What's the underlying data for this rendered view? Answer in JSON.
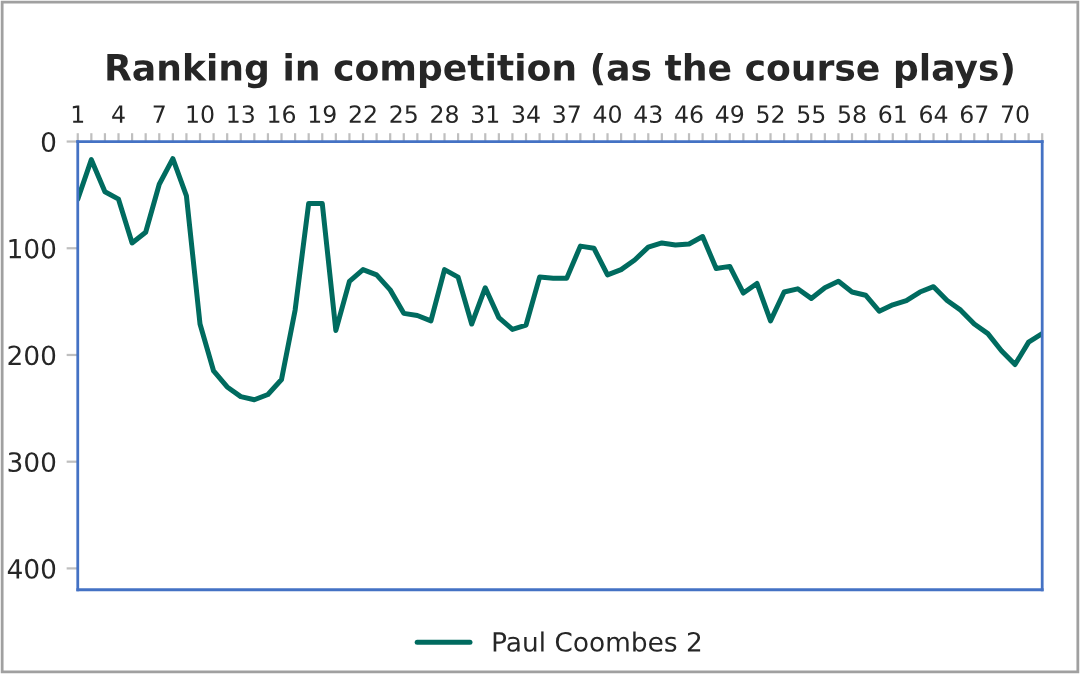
{
  "chart_data": {
    "type": "line",
    "title": "Ranking in competition (as the course plays)",
    "categories": [
      "1",
      null,
      null,
      "4",
      null,
      null,
      "7",
      null,
      null,
      "10",
      null,
      null,
      "13",
      null,
      null,
      "16",
      null,
      null,
      "19",
      null,
      null,
      "22",
      null,
      null,
      "25",
      null,
      null,
      "28",
      null,
      null,
      "31",
      null,
      null,
      "34",
      null,
      null,
      "37",
      null,
      null,
      "40",
      null,
      null,
      "43",
      null,
      null,
      "46",
      null,
      null,
      "49",
      null,
      null,
      "52",
      null,
      null,
      "55",
      null,
      null,
      "58",
      null,
      null,
      "61",
      null,
      null,
      "64",
      null,
      null,
      "67",
      null,
      null,
      "70",
      null,
      null
    ],
    "series": [
      {
        "name": "Paul Coombes 2",
        "color": "#006b5f",
        "values": [
          54,
          17,
          47,
          54,
          95,
          85,
          40,
          16,
          51,
          171,
          215,
          230,
          239,
          242,
          237,
          223,
          158,
          58,
          58,
          177,
          131,
          120,
          125,
          139,
          161,
          163,
          168,
          120,
          127,
          171,
          137,
          165,
          176,
          172,
          127,
          128,
          128,
          98,
          100,
          125,
          120,
          111,
          99,
          95,
          97,
          96,
          89,
          119,
          117,
          142,
          133,
          168,
          141,
          138,
          147,
          137,
          131,
          141,
          144,
          159,
          153,
          149,
          141,
          136,
          149,
          158,
          171,
          180,
          196,
          209,
          188,
          180
        ]
      }
    ],
    "ylim": [
      420,
      0
    ],
    "yticks": [
      0,
      100,
      200,
      300,
      400
    ],
    "grid": false,
    "legend": "bottom",
    "line_style": "solid",
    "marker": "none"
  }
}
